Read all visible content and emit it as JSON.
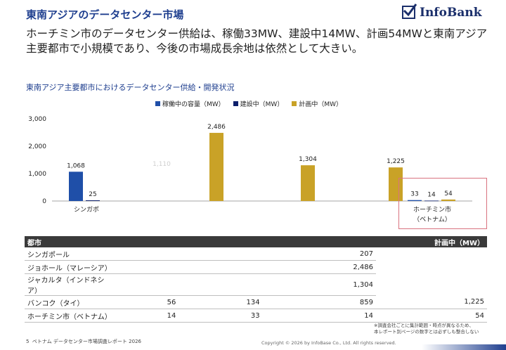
{
  "header": {
    "title": "東南アジアのデータセンター市場",
    "logo_text": "InfoBank",
    "headline": "ホーチミン市のデータセンター供給は、稼働33MW、建設中14MW、計画54MWと東南アジア主要都市で小規模であり、今後の市場成長余地は依然として大きい。"
  },
  "colors": {
    "operating": "#1f4fa8",
    "construction": "#0d1f6b",
    "planned": "#c9a227",
    "title": "#1f3f8f"
  },
  "chart_data": {
    "type": "bar",
    "title": "東南アジア主要都市におけるデータセンター供給・開発状況",
    "ylim": [
      0,
      3000
    ],
    "yticks": [
      "3,000",
      "2,000",
      "1,000",
      "0"
    ],
    "categories": [
      "シンガポール",
      "ジョホール（マレーシア）",
      "ジャカルタ（インドネシア）",
      "バンコク（タイ）",
      "ホーチミン市\n（ベトナム）"
    ],
    "category_labels_visible": [
      "シンガポ",
      "",
      "",
      "",
      "ホーチミン市"
    ],
    "category_sublabel_visible": [
      "",
      "",
      "",
      "",
      "（ベトナム）"
    ],
    "series": [
      {
        "name": "稼働中の容量（MW）",
        "values": [
          1068,
          null,
          null,
          null,
          33
        ],
        "labels": [
          "1,068",
          "",
          "",
          "",
          "33"
        ]
      },
      {
        "name": "建設中（MW）",
        "values": [
          25,
          null,
          null,
          null,
          14
        ],
        "labels": [
          "25",
          "",
          "",
          "",
          "14"
        ]
      },
      {
        "name": "計画中（MW）",
        "values": [
          null,
          2486,
          1304,
          1225,
          54
        ],
        "labels": [
          "",
          "2,486",
          "1,304",
          "1,225",
          "54"
        ]
      }
    ],
    "faded_labels": [
      "1,110"
    ],
    "legend": "top"
  },
  "table": {
    "headers": [
      "都市",
      "",
      "",
      "計画中（MW）"
    ],
    "rows": [
      [
        "シンガポール",
        "",
        "",
        "207"
      ],
      [
        "ジョホール（マレーシア）",
        "",
        "",
        "2,486"
      ],
      [
        "ジャカルタ（インドネシア）",
        "",
        "",
        "1,304"
      ],
      [
        "バンコク（タイ）",
        "56",
        "134",
        "859",
        "1,225"
      ],
      [
        "ホーチミン市（ベトナム）",
        "14",
        "33",
        "14",
        "54"
      ]
    ]
  },
  "notes": {
    "line1": "※調査会社ごとに集計範囲・時点が異なるため、",
    "line2": "本レポート別ページの数字とは必ずしも整合しない"
  },
  "footer": {
    "page": "5",
    "report": "ベトナム データセンター市場調査レポート 2026",
    "copyright": "Copyright © 2026 by InfoBase Co., Ltd. All rights reserved."
  }
}
